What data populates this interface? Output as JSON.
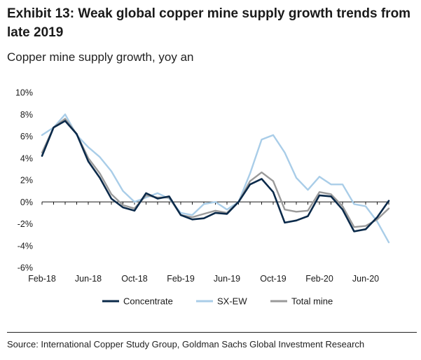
{
  "header": {
    "title": "Exhibit 13: Weak global copper mine supply growth trends from late 2019",
    "subtitle": "Copper mine supply growth, yoy an"
  },
  "footer": {
    "source": "Source: International Copper Study Group, Goldman Sachs Global Investment Research"
  },
  "chart_data": {
    "type": "line",
    "title": "",
    "xlabel": "",
    "ylabel": "",
    "ylim": [
      -6,
      10
    ],
    "yticks": [
      10,
      8,
      6,
      4,
      2,
      0,
      -2,
      -4,
      -6
    ],
    "ytick_labels": [
      "10%",
      "8%",
      "6%",
      "4%",
      "2%",
      "0%",
      "-2%",
      "-4%",
      "-6%"
    ],
    "x": [
      "Feb-18",
      "Mar-18",
      "Apr-18",
      "May-18",
      "Jun-18",
      "Jul-18",
      "Aug-18",
      "Sep-18",
      "Oct-18",
      "Nov-18",
      "Dec-18",
      "Jan-19",
      "Feb-19",
      "Mar-19",
      "Apr-19",
      "May-19",
      "Jun-19",
      "Jul-19",
      "Aug-19",
      "Sep-19",
      "Oct-19",
      "Nov-19",
      "Dec-19",
      "Jan-20",
      "Feb-20",
      "Mar-20",
      "Apr-20",
      "May-20",
      "Jun-20",
      "Jul-20",
      "Aug-20"
    ],
    "xtick_labels": [
      "Feb-18",
      "Jun-18",
      "Oct-18",
      "Feb-19",
      "Jun-19",
      "Oct-19",
      "Feb-20",
      "Jun-20"
    ],
    "legend_position": "bottom",
    "grid": false,
    "series": [
      {
        "name": "Concentrate",
        "color": "#0b2a4a",
        "values": [
          4.2,
          6.8,
          7.4,
          6.2,
          3.7,
          2.2,
          0.3,
          -0.5,
          -0.8,
          0.8,
          0.3,
          0.5,
          -1.2,
          -1.6,
          -1.5,
          -1.0,
          -1.1,
          0.0,
          1.6,
          2.1,
          0.9,
          -1.9,
          -1.7,
          -1.3,
          0.6,
          0.5,
          -0.7,
          -2.7,
          -2.5,
          -1.4,
          0.1
        ]
      },
      {
        "name": "SX-EW",
        "color": "#a9cde8",
        "values": [
          6.1,
          6.8,
          8.0,
          6.1,
          5.0,
          4.1,
          2.8,
          1.0,
          0.0,
          0.4,
          0.8,
          0.3,
          -1.0,
          -1.2,
          -0.2,
          0.0,
          -0.7,
          0.0,
          2.6,
          5.7,
          6.1,
          4.5,
          2.2,
          1.1,
          2.3,
          1.6,
          1.6,
          -0.2,
          -0.4,
          -1.8,
          -3.7
        ]
      },
      {
        "name": "Total mine",
        "color": "#9a9a9a",
        "values": [
          4.5,
          6.8,
          7.6,
          6.2,
          4.0,
          2.6,
          0.7,
          -0.3,
          -0.6,
          0.6,
          0.4,
          0.4,
          -1.2,
          -1.4,
          -1.1,
          -0.8,
          -1.0,
          0.0,
          1.9,
          2.7,
          1.9,
          -0.7,
          -0.9,
          -0.8,
          0.9,
          0.7,
          -0.4,
          -2.3,
          -2.2,
          -1.6,
          -0.6
        ]
      }
    ]
  }
}
